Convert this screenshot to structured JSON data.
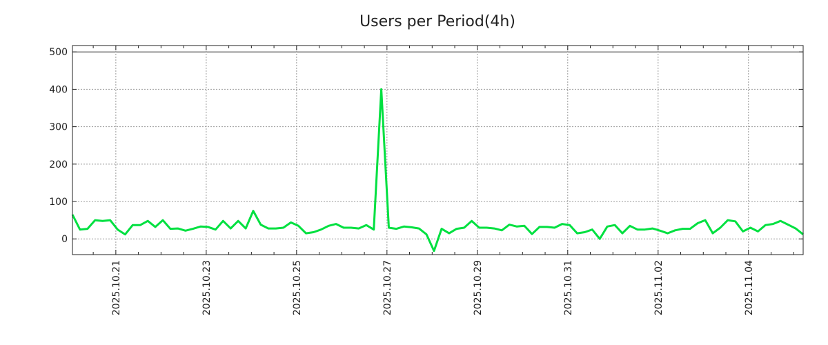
{
  "chart_data": {
    "type": "line",
    "title": "Users per Period(4h)",
    "xlabel": "",
    "ylabel": "",
    "x_units": "days relative to 2025.10.21 00:00",
    "x_start": -0.96,
    "x_step": 0.1667,
    "xlim": [
      -0.96,
      15.21
    ],
    "ylim": [
      -42,
      517
    ],
    "grid": true,
    "line_color": "#00e040",
    "yticks": [
      0,
      100,
      200,
      300,
      400,
      500
    ],
    "ytick_labels": [
      "0",
      "100",
      "200",
      "300",
      "400",
      "500"
    ],
    "xticks": [
      0,
      2,
      4,
      6,
      8,
      10,
      12,
      14
    ],
    "xtick_labels": [
      "2025.10.21",
      "2025.10.23",
      "2025.10.25",
      "2025.10.27",
      "2025.10.29",
      "2025.10.31",
      "2025.11.02",
      "2025.11.04"
    ],
    "series": [
      {
        "name": "Users",
        "values": [
          65,
          25,
          27,
          50,
          48,
          50,
          25,
          12,
          37,
          37,
          48,
          32,
          50,
          27,
          28,
          22,
          27,
          33,
          32,
          25,
          48,
          28,
          48,
          28,
          75,
          38,
          28,
          28,
          30,
          44,
          35,
          15,
          18,
          25,
          35,
          40,
          30,
          30,
          28,
          37,
          25,
          400,
          30,
          27,
          33,
          31,
          28,
          12,
          -32,
          27,
          15,
          27,
          30,
          48,
          30,
          30,
          28,
          23,
          38,
          33,
          35,
          13,
          32,
          32,
          30,
          40,
          37,
          15,
          18,
          25,
          0,
          33,
          37,
          15,
          35,
          25,
          25,
          28,
          22,
          15,
          23,
          27,
          27,
          42,
          50,
          15,
          30,
          50,
          47,
          20,
          30,
          20,
          37,
          40,
          48,
          38,
          28,
          12
        ]
      }
    ]
  }
}
